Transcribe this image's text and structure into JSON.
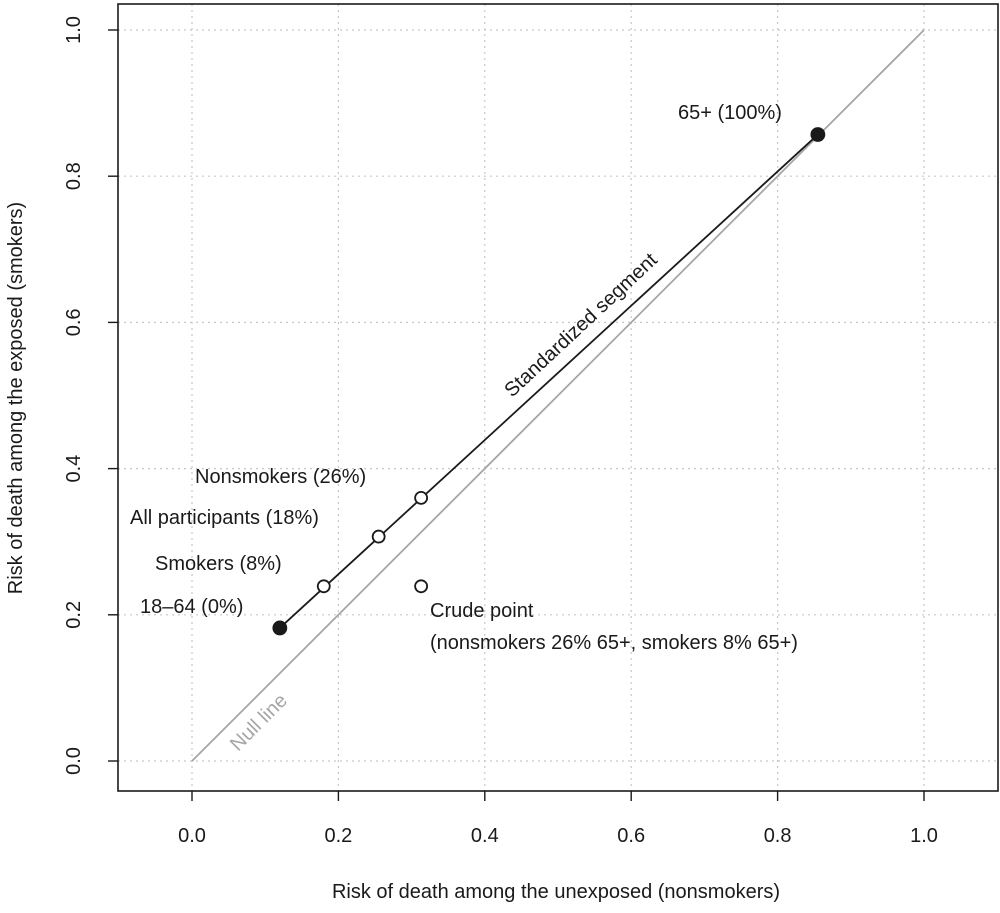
{
  "chart_data": {
    "type": "scatter",
    "title": "",
    "xlabel": "Risk of death among the unexposed (nonsmokers)",
    "ylabel": "Risk of death among the exposed (smokers)",
    "xlim": [
      -0.1,
      1.1
    ],
    "ylim": [
      -0.04,
      1.04
    ],
    "xticks": [
      0.0,
      0.2,
      0.4,
      0.6,
      0.8,
      1.0
    ],
    "yticks": [
      0.0,
      0.2,
      0.4,
      0.6,
      0.8,
      1.0
    ],
    "xtick_labels": [
      "0.0",
      "0.2",
      "0.4",
      "0.6",
      "0.8",
      "1.0"
    ],
    "ytick_labels": [
      "0.0",
      "0.2",
      "0.4",
      "0.6",
      "0.8",
      "1.0"
    ],
    "grid": true,
    "null_line": {
      "label": "Null line",
      "from": [
        0.0,
        0.0
      ],
      "to": [
        1.0,
        1.0
      ],
      "color": "#a6a6a6"
    },
    "standardized_segment": {
      "label": "Standardized segment",
      "from": [
        0.12,
        0.182
      ],
      "to": [
        0.855,
        0.857
      ],
      "color": "#1a1a1a"
    },
    "points": [
      {
        "label": "18–64 (0%)",
        "x": 0.12,
        "y": 0.182,
        "filled": true
      },
      {
        "label": "Smokers (8%)",
        "x": 0.18,
        "y": 0.239,
        "filled": false
      },
      {
        "label": "All participants (18%)",
        "x": 0.255,
        "y": 0.307,
        "filled": false
      },
      {
        "label": "Nonsmokers (26%)",
        "x": 0.313,
        "y": 0.36,
        "filled": false
      },
      {
        "label": "65+ (100%)",
        "x": 0.855,
        "y": 0.857,
        "filled": true
      },
      {
        "label": "Crude point",
        "label_line2": "(nonsmokers 26% 65+, smokers 8% 65+)",
        "x": 0.313,
        "y": 0.239,
        "filled": false
      }
    ],
    "colors": {
      "ink": "#1a1a1a",
      "grid": "#c8c8c8",
      "null": "#a6a6a6"
    }
  }
}
